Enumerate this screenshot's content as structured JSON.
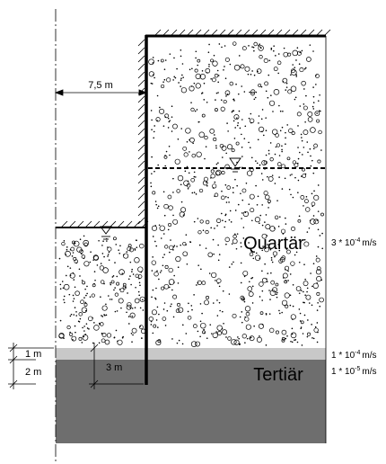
{
  "dimensions": {
    "excavation_width": "7,5 m",
    "layer_thin": "1 m",
    "layer_thick": "2 m",
    "embedment": "3 m"
  },
  "soil_names": {
    "upper": "Quartär",
    "lower": "Tertiär"
  },
  "permeabilities": [
    {
      "base": "3 * 10",
      "exponent": "-4",
      "unit": "m/s"
    },
    {
      "base": "1 * 10",
      "exponent": "-4",
      "unit": "m/s"
    },
    {
      "base": "1 * 10",
      "exponent": "-5",
      "unit": "m/s"
    }
  ]
}
